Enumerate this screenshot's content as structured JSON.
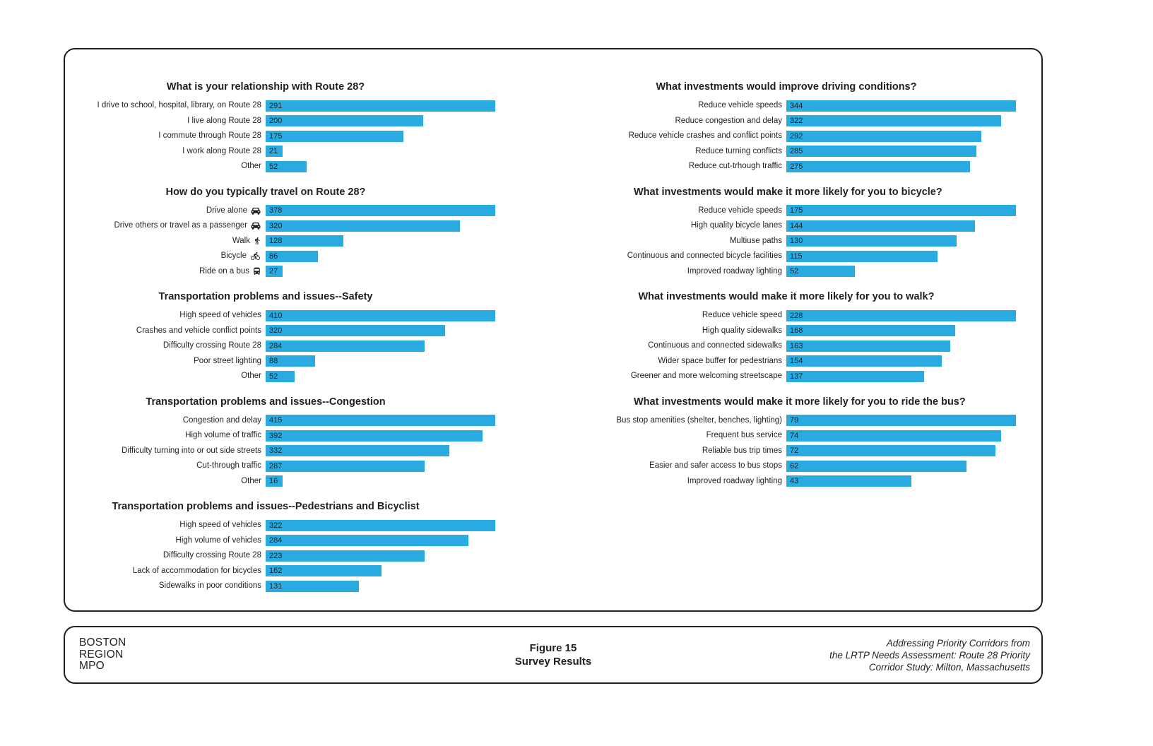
{
  "colors": {
    "bar": "#29abe2",
    "text": "#231f20",
    "panel_border": "#231f20"
  },
  "footer": {
    "org_lines": [
      "BOSTON",
      "REGION",
      "MPO"
    ],
    "figure_label": "Figure 15",
    "figure_title": "Survey Results",
    "credit_lines": [
      "Addressing Priority Corridors from",
      "the LRTP Needs Assessment: Route 28 Priority",
      "Corridor Study: Milton, Massachusetts"
    ]
  },
  "chart_data": [
    {
      "id": "relationship",
      "type": "bar",
      "orientation": "horizontal",
      "column": "left",
      "title": "What is your relationship with Route 28?",
      "items": [
        {
          "label": "I drive to school, hospital, library, on Route 28",
          "value": 291
        },
        {
          "label": "I live along Route 28",
          "value": 200
        },
        {
          "label": "I commute through Route 28",
          "value": 175
        },
        {
          "label": "I work along Route 28",
          "value": 21
        },
        {
          "label": "Other",
          "value": 52
        }
      ]
    },
    {
      "id": "travel-mode",
      "type": "bar",
      "orientation": "horizontal",
      "column": "left",
      "title": "How do you typically travel on Route 28?",
      "items": [
        {
          "label": "Drive alone",
          "value": 378,
          "icon": "car-icon"
        },
        {
          "label": "Drive others or travel as a passenger",
          "value": 320,
          "icon": "car-icon"
        },
        {
          "label": "Walk",
          "value": 128,
          "icon": "pedestrian-icon"
        },
        {
          "label": "Bicycle",
          "value": 86,
          "icon": "bicycle-icon"
        },
        {
          "label": "Ride on a bus",
          "value": 27,
          "icon": "bus-icon"
        }
      ]
    },
    {
      "id": "problems-safety",
      "type": "bar",
      "orientation": "horizontal",
      "column": "left",
      "title": "Transportation problems and issues--Safety",
      "items": [
        {
          "label": "High speed of vehicles",
          "value": 410
        },
        {
          "label": "Crashes and vehicle conflict points",
          "value": 320
        },
        {
          "label": "Difficulty crossing Route 28",
          "value": 284
        },
        {
          "label": "Poor street lighting",
          "value": 88
        },
        {
          "label": "Other",
          "value": 52
        }
      ]
    },
    {
      "id": "problems-congestion",
      "type": "bar",
      "orientation": "horizontal",
      "column": "left",
      "title": "Transportation problems and issues--Congestion",
      "items": [
        {
          "label": "Congestion and delay",
          "value": 415
        },
        {
          "label": "High volume of traffic",
          "value": 392
        },
        {
          "label": "Difficulty turning into or out side streets",
          "value": 332
        },
        {
          "label": "Cut-through traffic",
          "value": 287
        },
        {
          "label": "Other",
          "value": 16
        }
      ]
    },
    {
      "id": "problems-ped-bike",
      "type": "bar",
      "orientation": "horizontal",
      "column": "left",
      "title": "Transportation problems and issues--Pedestrians and Bicyclist",
      "items": [
        {
          "label": "High speed of vehicles",
          "value": 322
        },
        {
          "label": "High volume of vehicles",
          "value": 284
        },
        {
          "label": "Difficulty crossing Route 28",
          "value": 223
        },
        {
          "label": "Lack of accommodation for bicycles",
          "value": 162
        },
        {
          "label": "Sidewalks in poor conditions",
          "value": 131
        }
      ]
    },
    {
      "id": "invest-driving",
      "type": "bar",
      "orientation": "horizontal",
      "column": "right",
      "title": "What investments would improve driving conditions?",
      "items": [
        {
          "label": "Reduce vehicle speeds",
          "value": 344
        },
        {
          "label": "Reduce congestion and delay",
          "value": 322
        },
        {
          "label": "Reduce vehicle crashes and conflict points",
          "value": 292
        },
        {
          "label": "Reduce turning conflicts",
          "value": 285
        },
        {
          "label": "Reduce cut-trhough traffic",
          "value": 275
        }
      ]
    },
    {
      "id": "invest-bicycle",
      "type": "bar",
      "orientation": "horizontal",
      "column": "right",
      "title": "What investments would make it more likely for you to bicycle?",
      "items": [
        {
          "label": "Reduce vehicle speeds",
          "value": 175
        },
        {
          "label": "High quality bicycle lanes",
          "value": 144
        },
        {
          "label": "Multiuse paths",
          "value": 130
        },
        {
          "label": "Continuous and connected bicycle facilities",
          "value": 115
        },
        {
          "label": "Improved roadway lighting",
          "value": 52
        }
      ]
    },
    {
      "id": "invest-walk",
      "type": "bar",
      "orientation": "horizontal",
      "column": "right",
      "title": "What investments would make it more likely for you to walk?",
      "items": [
        {
          "label": "Reduce vehicle speed",
          "value": 228
        },
        {
          "label": "High quality sidewalks",
          "value": 168
        },
        {
          "label": "Continuous and connected sidewalks",
          "value": 163
        },
        {
          "label": "Wider space buffer for pedestrians",
          "value": 154
        },
        {
          "label": "Greener and more welcoming streetscape",
          "value": 137
        }
      ]
    },
    {
      "id": "invest-bus",
      "type": "bar",
      "orientation": "horizontal",
      "column": "right",
      "title": "What investments would make it more likely for you to ride the bus?",
      "items": [
        {
          "label": "Bus stop amenities (shelter, benches, lighting)",
          "value": 79
        },
        {
          "label": "Frequent bus service",
          "value": 74
        },
        {
          "label": "Reliable bus trip times",
          "value": 72
        },
        {
          "label": "Easier and safer access to bus stops",
          "value": 62
        },
        {
          "label": "Improved roadway lighting",
          "value": 43
        }
      ]
    }
  ]
}
